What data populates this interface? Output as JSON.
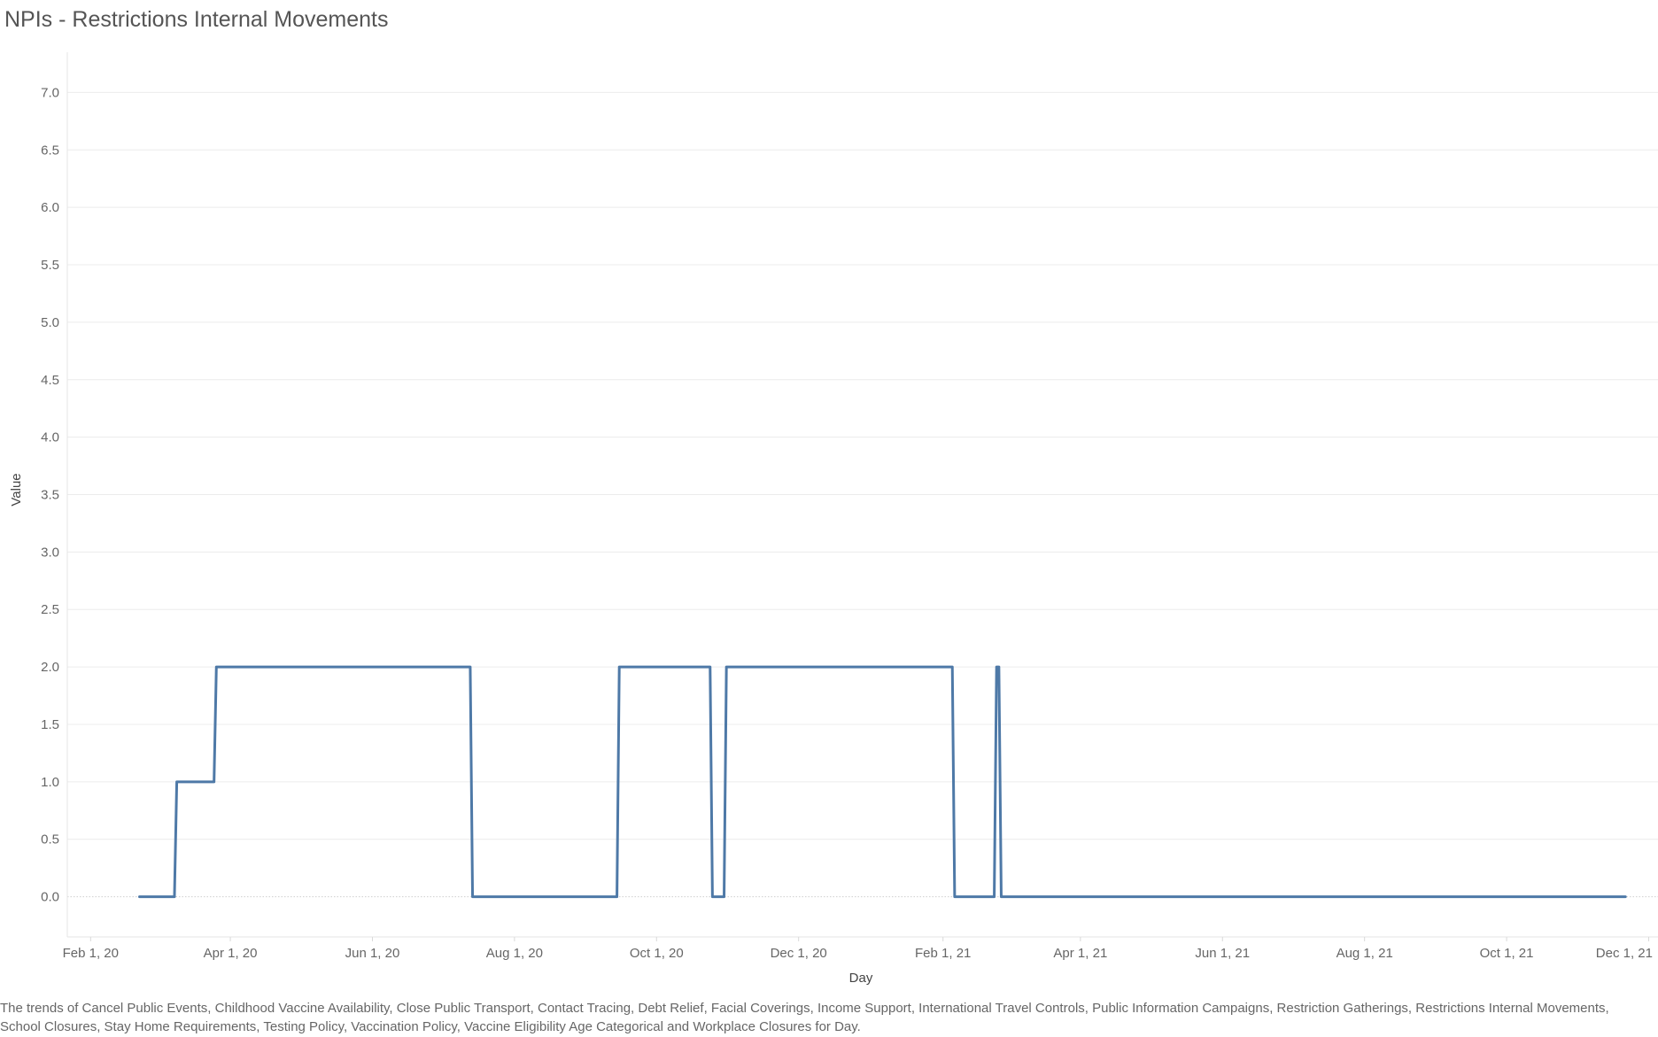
{
  "title": "NPIs - Restrictions Internal Movements",
  "caption": "The trends of Cancel Public Events, Childhood Vaccine Availability, Close Public Transport, Contact Tracing, Debt Relief, Facial Coverings, Income Support, International Travel Controls, Public Information Campaigns, Restriction Gatherings, Restrictions Internal Movements, School Closures, Stay Home Requirements, Testing Policy, Vaccination Policy, Vaccine Eligibility Age Categorical and Workplace Closures for Day.",
  "colors": {
    "line": "#4e79a7",
    "grid": "#ececec",
    "zero_line": "#cfcfcf"
  },
  "chart_data": {
    "type": "line",
    "title": "NPIs - Restrictions Internal Movements",
    "xlabel": "Day",
    "ylabel": "Value",
    "x_axis": {
      "type": "date",
      "range": [
        "2020-01-22",
        "2021-12-05"
      ],
      "ticks": [
        {
          "date": "2020-02-01",
          "label": "Feb 1, 20"
        },
        {
          "date": "2020-04-01",
          "label": "Apr 1, 20"
        },
        {
          "date": "2020-06-01",
          "label": "Jun 1, 20"
        },
        {
          "date": "2020-08-01",
          "label": "Aug 1, 20"
        },
        {
          "date": "2020-10-01",
          "label": "Oct 1, 20"
        },
        {
          "date": "2020-12-01",
          "label": "Dec 1, 20"
        },
        {
          "date": "2021-02-01",
          "label": "Feb 1, 21"
        },
        {
          "date": "2021-04-01",
          "label": "Apr 1, 21"
        },
        {
          "date": "2021-06-01",
          "label": "Jun 1, 21"
        },
        {
          "date": "2021-08-01",
          "label": "Aug 1, 21"
        },
        {
          "date": "2021-10-01",
          "label": "Oct 1, 21"
        },
        {
          "date": "2021-12-01",
          "label": "Dec 1, 21"
        }
      ]
    },
    "y_axis": {
      "range": [
        -0.35,
        7.35
      ],
      "ticks": [
        0.0,
        0.5,
        1.0,
        1.5,
        2.0,
        2.5,
        3.0,
        3.5,
        4.0,
        4.5,
        5.0,
        5.5,
        6.0,
        6.5,
        7.0
      ],
      "tick_labels": [
        "0.0",
        "0.5",
        "1.0",
        "1.5",
        "2.0",
        "2.5",
        "3.0",
        "3.5",
        "4.0",
        "4.5",
        "5.0",
        "5.5",
        "6.0",
        "6.5",
        "7.0"
      ]
    },
    "grid": true,
    "series": [
      {
        "points": [
          {
            "x": "2020-02-22",
            "y": 0
          },
          {
            "x": "2020-03-08",
            "y": 0
          },
          {
            "x": "2020-03-09",
            "y": 1
          },
          {
            "x": "2020-03-25",
            "y": 1
          },
          {
            "x": "2020-03-26",
            "y": 2
          },
          {
            "x": "2020-07-13",
            "y": 2
          },
          {
            "x": "2020-07-14",
            "y": 0
          },
          {
            "x": "2020-09-14",
            "y": 0
          },
          {
            "x": "2020-09-15",
            "y": 2
          },
          {
            "x": "2020-10-24",
            "y": 2
          },
          {
            "x": "2020-10-25",
            "y": 0
          },
          {
            "x": "2020-10-30",
            "y": 0
          },
          {
            "x": "2020-10-31",
            "y": 2
          },
          {
            "x": "2021-02-05",
            "y": 2
          },
          {
            "x": "2021-02-06",
            "y": 0
          },
          {
            "x": "2021-02-23",
            "y": 0
          },
          {
            "x": "2021-02-24",
            "y": 2
          },
          {
            "x": "2021-02-25",
            "y": 2
          },
          {
            "x": "2021-02-26",
            "y": 0
          },
          {
            "x": "2021-11-21",
            "y": 0
          }
        ]
      }
    ]
  }
}
